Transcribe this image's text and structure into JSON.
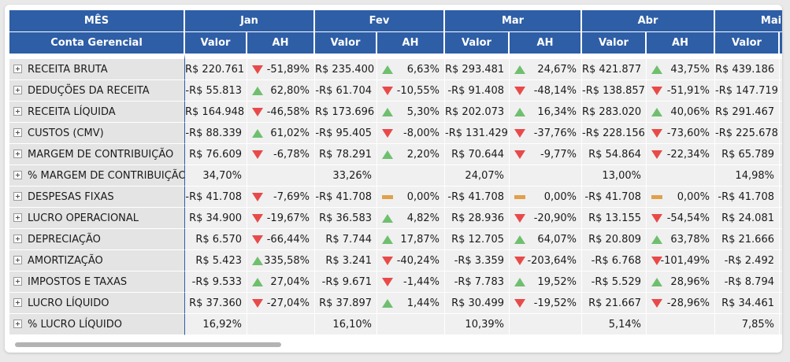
{
  "header": {
    "row_dimension": "MÊS",
    "row_label": "Conta Gerencial",
    "months": [
      "Jan",
      "Fev",
      "Mar",
      "Abr",
      "Mai"
    ],
    "valor_label": "Valor",
    "ah_label": "AH"
  },
  "colors": {
    "header_bg": "#2e5ea6",
    "up": "#6fbf6f",
    "down": "#e84a4a",
    "flat": "#e0a14a"
  },
  "rows": [
    {
      "name": "RECEITA BRUTA",
      "cells": [
        {
          "v": "R$ 220.761",
          "ah": "-51,89%",
          "d": "down"
        },
        {
          "v": "R$ 235.400",
          "ah": "6,63%",
          "d": "up"
        },
        {
          "v": "R$ 293.481",
          "ah": "24,67%",
          "d": "up"
        },
        {
          "v": "R$ 421.877",
          "ah": "43,75%",
          "d": "up"
        },
        {
          "v": "R$ 439.186",
          "ah": "",
          "d": ""
        }
      ]
    },
    {
      "name": "DEDUÇÕES DA RECEITA",
      "cells": [
        {
          "v": "-R$ 55.813",
          "ah": "62,80%",
          "d": "up"
        },
        {
          "v": "-R$ 61.704",
          "ah": "-10,55%",
          "d": "down"
        },
        {
          "v": "-R$ 91.408",
          "ah": "-48,14%",
          "d": "down"
        },
        {
          "v": "-R$ 138.857",
          "ah": "-51,91%",
          "d": "down"
        },
        {
          "v": "-R$ 147.719",
          "ah": "",
          "d": ""
        }
      ]
    },
    {
      "name": "RECEITA LÍQUIDA",
      "cells": [
        {
          "v": "R$ 164.948",
          "ah": "-46,58%",
          "d": "down"
        },
        {
          "v": "R$ 173.696",
          "ah": "5,30%",
          "d": "up"
        },
        {
          "v": "R$ 202.073",
          "ah": "16,34%",
          "d": "up"
        },
        {
          "v": "R$ 283.020",
          "ah": "40,06%",
          "d": "up"
        },
        {
          "v": "R$ 291.467",
          "ah": "",
          "d": ""
        }
      ]
    },
    {
      "name": "CUSTOS (CMV)",
      "cells": [
        {
          "v": "-R$ 88.339",
          "ah": "61,02%",
          "d": "up"
        },
        {
          "v": "-R$ 95.405",
          "ah": "-8,00%",
          "d": "down"
        },
        {
          "v": "-R$ 131.429",
          "ah": "-37,76%",
          "d": "down"
        },
        {
          "v": "-R$ 228.156",
          "ah": "-73,60%",
          "d": "down"
        },
        {
          "v": "-R$ 225.678",
          "ah": "",
          "d": ""
        }
      ]
    },
    {
      "name": "MARGEM DE CONTRIBUIÇÃO",
      "cells": [
        {
          "v": "R$ 76.609",
          "ah": "-6,78%",
          "d": "down"
        },
        {
          "v": "R$ 78.291",
          "ah": "2,20%",
          "d": "up"
        },
        {
          "v": "R$ 70.644",
          "ah": "-9,77%",
          "d": "down"
        },
        {
          "v": "R$ 54.864",
          "ah": "-22,34%",
          "d": "down"
        },
        {
          "v": "R$ 65.789",
          "ah": "",
          "d": ""
        }
      ]
    },
    {
      "name": "% MARGEM DE CONTRIBUIÇÃO",
      "cells": [
        {
          "v": "34,70%",
          "ah": "",
          "d": ""
        },
        {
          "v": "33,26%",
          "ah": "",
          "d": ""
        },
        {
          "v": "24,07%",
          "ah": "",
          "d": ""
        },
        {
          "v": "13,00%",
          "ah": "",
          "d": ""
        },
        {
          "v": "14,98%",
          "ah": "",
          "d": ""
        }
      ]
    },
    {
      "name": "DESPESAS FIXAS",
      "cells": [
        {
          "v": "-R$ 41.708",
          "ah": "-7,69%",
          "d": "down"
        },
        {
          "v": "-R$ 41.708",
          "ah": "0,00%",
          "d": "flat"
        },
        {
          "v": "-R$ 41.708",
          "ah": "0,00%",
          "d": "flat"
        },
        {
          "v": "-R$ 41.708",
          "ah": "0,00%",
          "d": "flat"
        },
        {
          "v": "-R$ 41.708",
          "ah": "",
          "d": ""
        }
      ]
    },
    {
      "name": "LUCRO OPERACIONAL",
      "cells": [
        {
          "v": "R$ 34.900",
          "ah": "-19,67%",
          "d": "down"
        },
        {
          "v": "R$ 36.583",
          "ah": "4,82%",
          "d": "up"
        },
        {
          "v": "R$ 28.936",
          "ah": "-20,90%",
          "d": "down"
        },
        {
          "v": "R$ 13.155",
          "ah": "-54,54%",
          "d": "down"
        },
        {
          "v": "R$ 24.081",
          "ah": "",
          "d": ""
        }
      ]
    },
    {
      "name": "DEPRECIAÇÃO",
      "cells": [
        {
          "v": "R$ 6.570",
          "ah": "-66,44%",
          "d": "down"
        },
        {
          "v": "R$ 7.744",
          "ah": "17,87%",
          "d": "up"
        },
        {
          "v": "R$ 12.705",
          "ah": "64,07%",
          "d": "up"
        },
        {
          "v": "R$ 20.809",
          "ah": "63,78%",
          "d": "up"
        },
        {
          "v": "R$ 21.666",
          "ah": "",
          "d": ""
        }
      ]
    },
    {
      "name": "AMORTIZAÇÃO",
      "cells": [
        {
          "v": "R$ 5.423",
          "ah": "335,58%",
          "d": "up"
        },
        {
          "v": "R$ 3.241",
          "ah": "-40,24%",
          "d": "down"
        },
        {
          "v": "-R$ 3.359",
          "ah": "-203,64%",
          "d": "down"
        },
        {
          "v": "-R$ 6.768",
          "ah": "-101,49%",
          "d": "down"
        },
        {
          "v": "-R$ 2.492",
          "ah": "",
          "d": ""
        }
      ]
    },
    {
      "name": "IMPOSTOS E TAXAS",
      "cells": [
        {
          "v": "-R$ 9.533",
          "ah": "27,04%",
          "d": "up"
        },
        {
          "v": "-R$ 9.671",
          "ah": "-1,44%",
          "d": "down"
        },
        {
          "v": "-R$ 7.783",
          "ah": "19,52%",
          "d": "up"
        },
        {
          "v": "-R$ 5.529",
          "ah": "28,96%",
          "d": "up"
        },
        {
          "v": "-R$ 8.794",
          "ah": "",
          "d": ""
        }
      ]
    },
    {
      "name": "LUCRO LÍQUIDO",
      "cells": [
        {
          "v": "R$ 37.360",
          "ah": "-27,04%",
          "d": "down"
        },
        {
          "v": "R$ 37.897",
          "ah": "1,44%",
          "d": "up"
        },
        {
          "v": "R$ 30.499",
          "ah": "-19,52%",
          "d": "down"
        },
        {
          "v": "R$ 21.667",
          "ah": "-28,96%",
          "d": "down"
        },
        {
          "v": "R$ 34.461",
          "ah": "",
          "d": ""
        }
      ]
    },
    {
      "name": "% LUCRO LÍQUIDO",
      "cells": [
        {
          "v": "16,92%",
          "ah": "",
          "d": ""
        },
        {
          "v": "16,10%",
          "ah": "",
          "d": ""
        },
        {
          "v": "10,39%",
          "ah": "",
          "d": ""
        },
        {
          "v": "5,14%",
          "ah": "",
          "d": ""
        },
        {
          "v": "7,85%",
          "ah": "",
          "d": ""
        }
      ]
    }
  ]
}
